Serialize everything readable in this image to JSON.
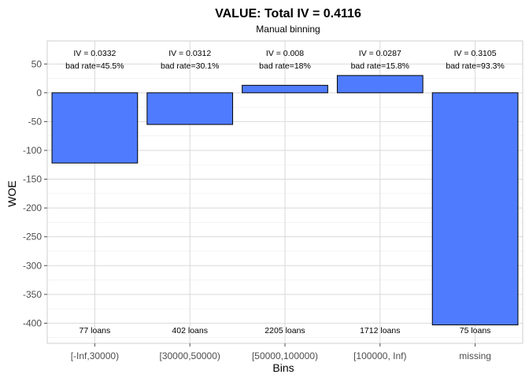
{
  "chart_data": {
    "type": "bar",
    "title": "VALUE: Total IV = 0.4116",
    "subtitle": "Manual binning",
    "xlabel": "Bins",
    "ylabel": "WOE",
    "categories": [
      "[-Inf,30000)",
      "[30000,50000)",
      "[50000,100000)",
      "[100000, Inf)",
      "missing"
    ],
    "values": [
      -122,
      -55,
      13,
      30,
      -403
    ],
    "iv_labels": [
      "IV = 0.0332",
      "IV = 0.0312",
      "IV = 0.008",
      "IV = 0.0287",
      "IV = 0.3105"
    ],
    "bad_rate_labels": [
      "bad rate=45.5%",
      "bad rate=30.1%",
      "bad rate=18%",
      "bad rate=15.8%",
      "bad rate=93.3%"
    ],
    "count_labels": [
      "77 loans",
      "402 loans",
      "2205 loans",
      "1712 loans",
      "75 loans"
    ],
    "ylim": [
      -435,
      90
    ],
    "y_ticks": [
      50,
      0,
      -50,
      -100,
      -150,
      -200,
      -250,
      -300,
      -350,
      -400
    ],
    "bar_fill": "#4f7cff",
    "bar_stroke": "#000000",
    "grid": true,
    "legend": "none"
  }
}
